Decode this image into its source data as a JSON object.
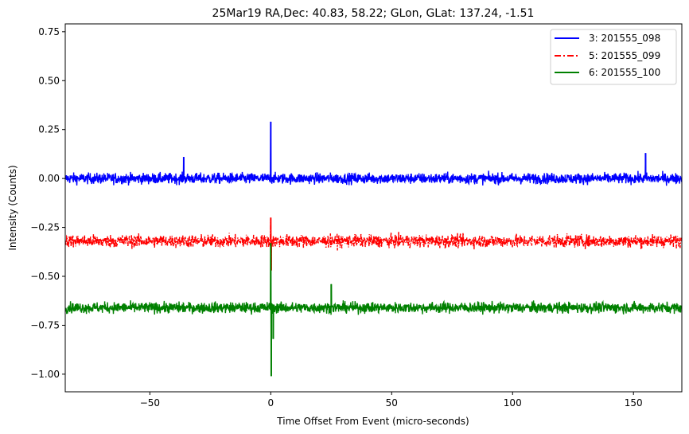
{
  "chart_data": {
    "type": "line",
    "title": "25Mar19 RA,Dec:   40.83,  58.22; GLon, GLat:  137.24,  -1.51",
    "xlabel": "Time Offset From Event (micro-seconds)",
    "ylabel": "Intensity (Counts)",
    "xlim": [
      -85,
      170
    ],
    "ylim": [
      -1.09,
      0.79
    ],
    "xticks": [
      -50,
      0,
      50,
      100,
      150
    ],
    "xtick_labels": [
      "−50",
      "0",
      "50",
      "100",
      "150"
    ],
    "yticks": [
      0.75,
      0.5,
      0.25,
      0.0,
      -0.25,
      -0.5,
      -0.75,
      -1.0
    ],
    "ytick_labels": [
      "0.75",
      "0.50",
      "0.25",
      "0.00",
      "−0.25",
      "−0.50",
      "−0.75",
      "−1.00"
    ],
    "grid": false,
    "legend_position": "upper right",
    "series": [
      {
        "name": "3: 201555_098",
        "color": "#0000ff",
        "linestyle": "solid",
        "baseline": 0.0,
        "noise_amplitude": 0.06,
        "spikes": [
          {
            "x": 0.0,
            "y": 0.29
          },
          {
            "x": -36,
            "y": 0.11
          },
          {
            "x": 155,
            "y": 0.13
          }
        ]
      },
      {
        "name": "5: 201555_099",
        "color": "#ff0000",
        "linestyle": "dashdot",
        "baseline": -0.32,
        "noise_amplitude": 0.07,
        "spikes": [
          {
            "x": 0.0,
            "y": -0.2
          },
          {
            "x": 0.2,
            "y": -0.47
          }
        ]
      },
      {
        "name": "6: 201555_100",
        "color": "#008000",
        "linestyle": "solid",
        "baseline": -0.66,
        "noise_amplitude": 0.06,
        "spikes": [
          {
            "x": 0.0,
            "y": -0.33
          },
          {
            "x": 0.2,
            "y": -1.01
          },
          {
            "x": 1.0,
            "y": -0.82
          },
          {
            "x": 25,
            "y": -0.54
          }
        ]
      }
    ]
  }
}
